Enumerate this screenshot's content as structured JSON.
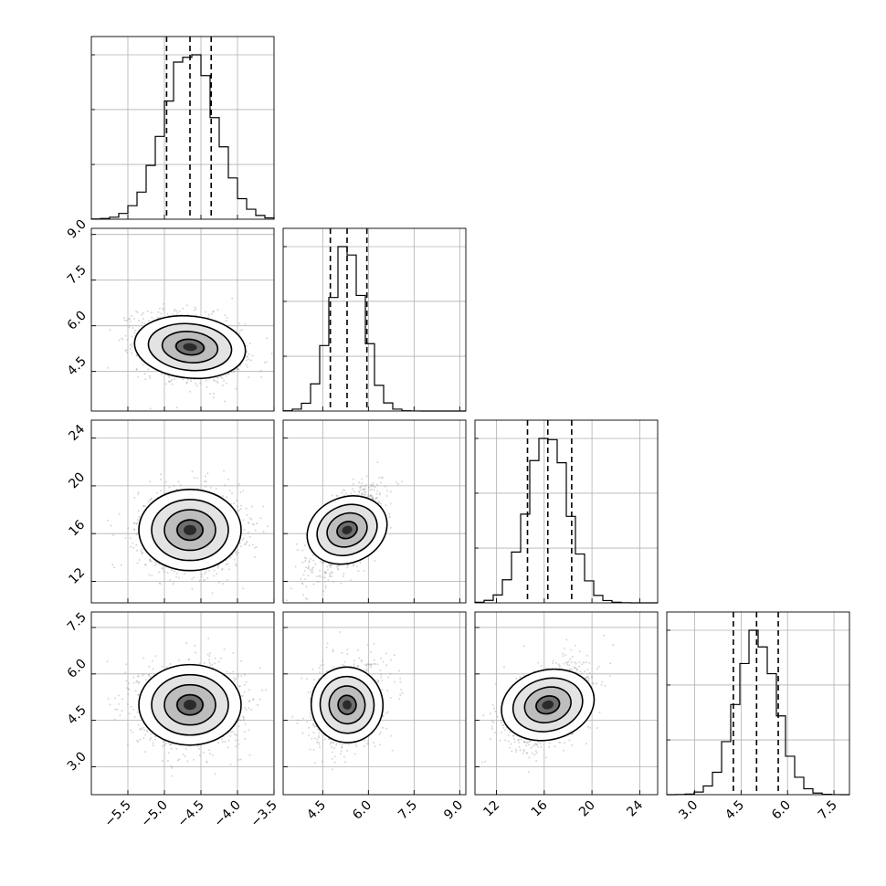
{
  "chart_data": {
    "type": "corner",
    "parameters": [
      {
        "range": [
          -6.0,
          -3.5
        ],
        "ticks": [
          -5.5,
          -5.0,
          -4.5,
          -4.0,
          -3.5
        ],
        "tick_labels": [
          "−5.5",
          "−5.0",
          "−4.5",
          "−4.0",
          "−3.5"
        ],
        "mean": -4.65,
        "sd": 0.35,
        "quantiles": [
          -4.97,
          -4.65,
          -4.36
        ]
      },
      {
        "range": [
          3.2,
          9.2
        ],
        "ticks": [
          4.5,
          6.0,
          7.5,
          9.0
        ],
        "tick_labels": [
          "4.5",
          "6.0",
          "7.5",
          "9.0"
        ],
        "mean": 5.3,
        "sd": 0.55,
        "quantiles": [
          4.75,
          5.3,
          5.95
        ]
      },
      {
        "range": [
          10.2,
          25.5
        ],
        "ticks": [
          12,
          16,
          20,
          24
        ],
        "tick_labels": [
          "12",
          "16",
          "20",
          "24"
        ],
        "mean": 16.3,
        "sd": 1.7,
        "quantiles": [
          14.6,
          16.3,
          18.3
        ]
      },
      {
        "range": [
          2.1,
          8.0
        ],
        "ticks": [
          3.0,
          4.5,
          6.0,
          7.5
        ],
        "tick_labels": [
          "3.0",
          "4.5",
          "6.0",
          "7.5"
        ],
        "mean": 5.0,
        "sd": 0.65,
        "quantiles": [
          4.25,
          5.0,
          5.7
        ]
      }
    ],
    "correlations": [
      [
        1,
        -0.25,
        0.0,
        0.0
      ],
      [
        -0.25,
        1,
        0.65,
        0.2
      ],
      [
        0.0,
        0.65,
        1,
        0.45
      ],
      [
        0.0,
        0.2,
        0.45,
        1
      ]
    ],
    "contour_levels": [
      0.5,
      1.0,
      1.5,
      2.0
    ],
    "quantile_style": "dashed",
    "histogram_bins": 20,
    "scatter_samples": 2500,
    "colors": {
      "line": "#000000",
      "scatter": "#8c8c8c",
      "grid": "#b0b0b0"
    }
  }
}
